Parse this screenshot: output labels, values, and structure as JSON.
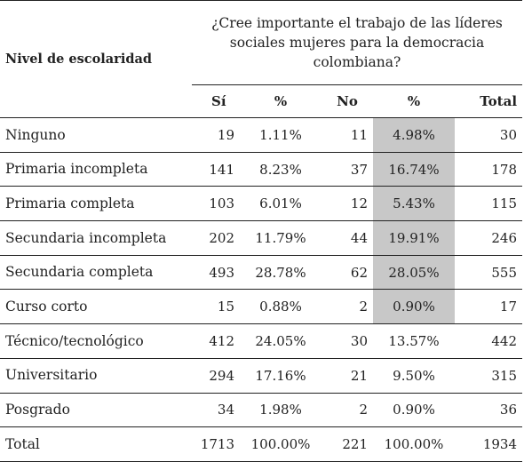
{
  "table": {
    "level_header": "Nivel de escolaridad",
    "question_header": "¿Cree importante el trabajo de las líderes sociales mujeres para la democracia colombiana?",
    "columns": [
      "Sí",
      "%",
      "No",
      "%",
      "Total"
    ],
    "highlight_color": "#c8c8c8",
    "rows": [
      {
        "level": "Ninguno",
        "si": "19",
        "si_pct": "1.11%",
        "no": "11",
        "no_pct": "4.98%",
        "total": "30",
        "highlight": true
      },
      {
        "level": "Primaria incompleta",
        "si": "141",
        "si_pct": "8.23%",
        "no": "37",
        "no_pct": "16.74%",
        "total": "178",
        "highlight": true
      },
      {
        "level": "Primaria completa",
        "si": "103",
        "si_pct": "6.01%",
        "no": "12",
        "no_pct": "5.43%",
        "total": "115",
        "highlight": true
      },
      {
        "level": "Secundaria incompleta",
        "si": "202",
        "si_pct": "11.79%",
        "no": "44",
        "no_pct": "19.91%",
        "total": "246",
        "highlight": true
      },
      {
        "level": "Secundaria completa",
        "si": "493",
        "si_pct": "28.78%",
        "no": "62",
        "no_pct": "28.05%",
        "total": "555",
        "highlight": true
      },
      {
        "level": "Curso corto",
        "si": "15",
        "si_pct": "0.88%",
        "no": "2",
        "no_pct": "0.90%",
        "total": "17",
        "highlight": true
      },
      {
        "level": "Técnico/tecnológico",
        "si": "412",
        "si_pct": "24.05%",
        "no": "30",
        "no_pct": "13.57%",
        "total": "442",
        "highlight": false
      },
      {
        "level": "Universitario",
        "si": "294",
        "si_pct": "17.16%",
        "no": "21",
        "no_pct": "9.50%",
        "total": "315",
        "highlight": false
      },
      {
        "level": "Posgrado",
        "si": "34",
        "si_pct": "1.98%",
        "no": "2",
        "no_pct": "0.90%",
        "total": "36",
        "highlight": false
      },
      {
        "level": "Total",
        "si": "1713",
        "si_pct": "100.00%",
        "no": "221",
        "no_pct": "100.00%",
        "total": "1934",
        "highlight": false
      }
    ]
  }
}
